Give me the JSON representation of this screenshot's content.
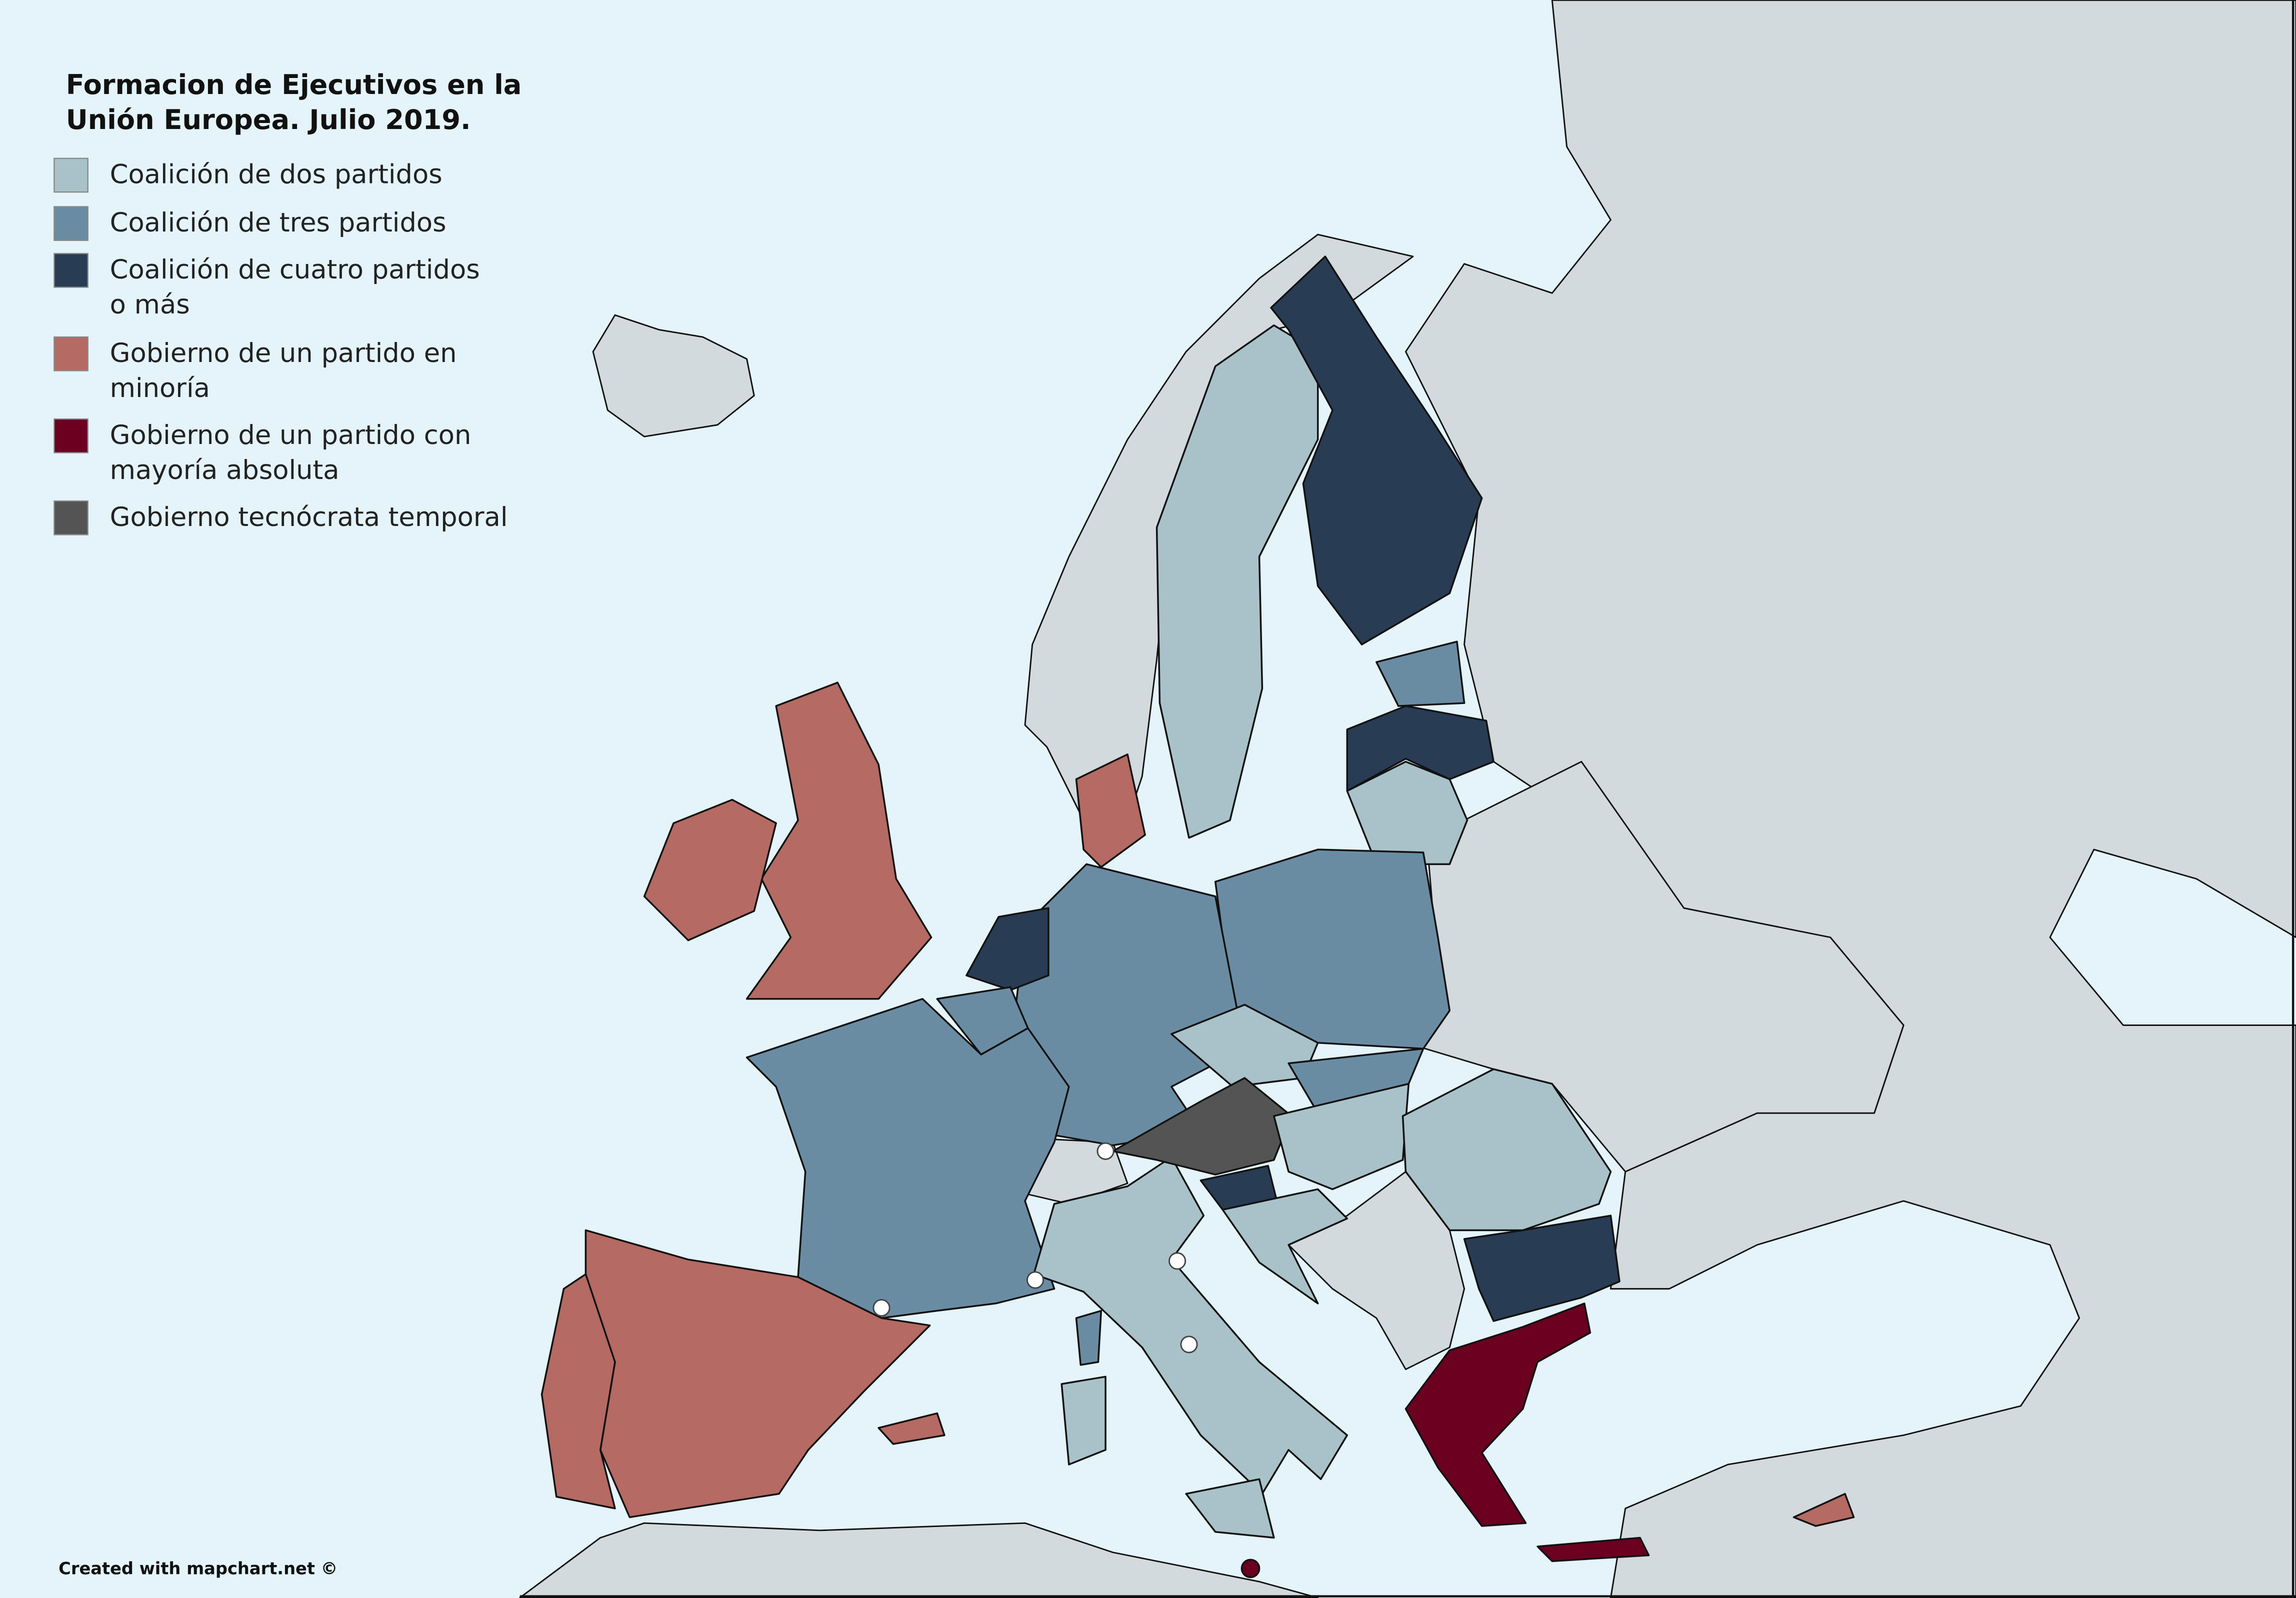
{
  "map": {
    "title": [
      "Formacion de Ejecutivos en la",
      "Unión Europea. Julio 2019."
    ],
    "legend": [
      {
        "label": [
          "Coalición de dos partidos"
        ],
        "color": "#a9c2c9"
      },
      {
        "label": [
          "Coalición de tres partidos"
        ],
        "color": "#6a8ca3"
      },
      {
        "label": [
          "Coalición de cuatro partidos",
          "o más"
        ],
        "color": "#283c54"
      },
      {
        "label": [
          "Gobierno de un partido en",
          "minoría"
        ],
        "color": "#b56a63"
      },
      {
        "label": [
          "Gobierno de un partido con",
          "mayoría absoluta"
        ],
        "color": "#6b0020"
      },
      {
        "label": [
          "Gobierno tecnócrata temporal"
        ],
        "color": "#545454"
      }
    ],
    "credit": "Created with mapchart.net ©"
  }
}
